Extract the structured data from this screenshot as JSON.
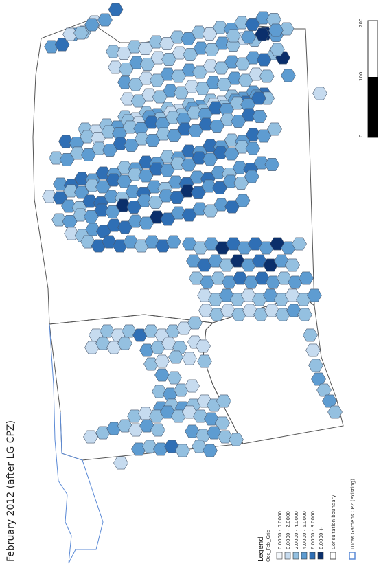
{
  "title": "February 2012 (after LG CPZ)",
  "legend": {
    "heading": "Legend",
    "layer_name": "Occ_Feb_Grid",
    "classes": [
      {
        "label": "0.0000 - 0.0000",
        "color": "#f4f8fc"
      },
      {
        "label": "0.0000 - 2.0000",
        "color": "#c6dbef"
      },
      {
        "label": "2.0000 - 4.0000",
        "color": "#94c0e0"
      },
      {
        "label": "4.0000 - 6.0000",
        "color": "#5e9cd1"
      },
      {
        "label": "6.0000 - 8.0000",
        "color": "#2f6fb5"
      },
      {
        "label": "8.0000 +",
        "color": "#0b2f6b"
      }
    ],
    "boundary_label": "Consultation boundary",
    "cpz_label": "Lucas Gardens CPZ (existing)",
    "boundary_color": "#555555",
    "cpz_color": "#5b8ad6"
  },
  "scale_bar": {
    "labels": [
      "0",
      "100",
      "200"
    ]
  }
}
